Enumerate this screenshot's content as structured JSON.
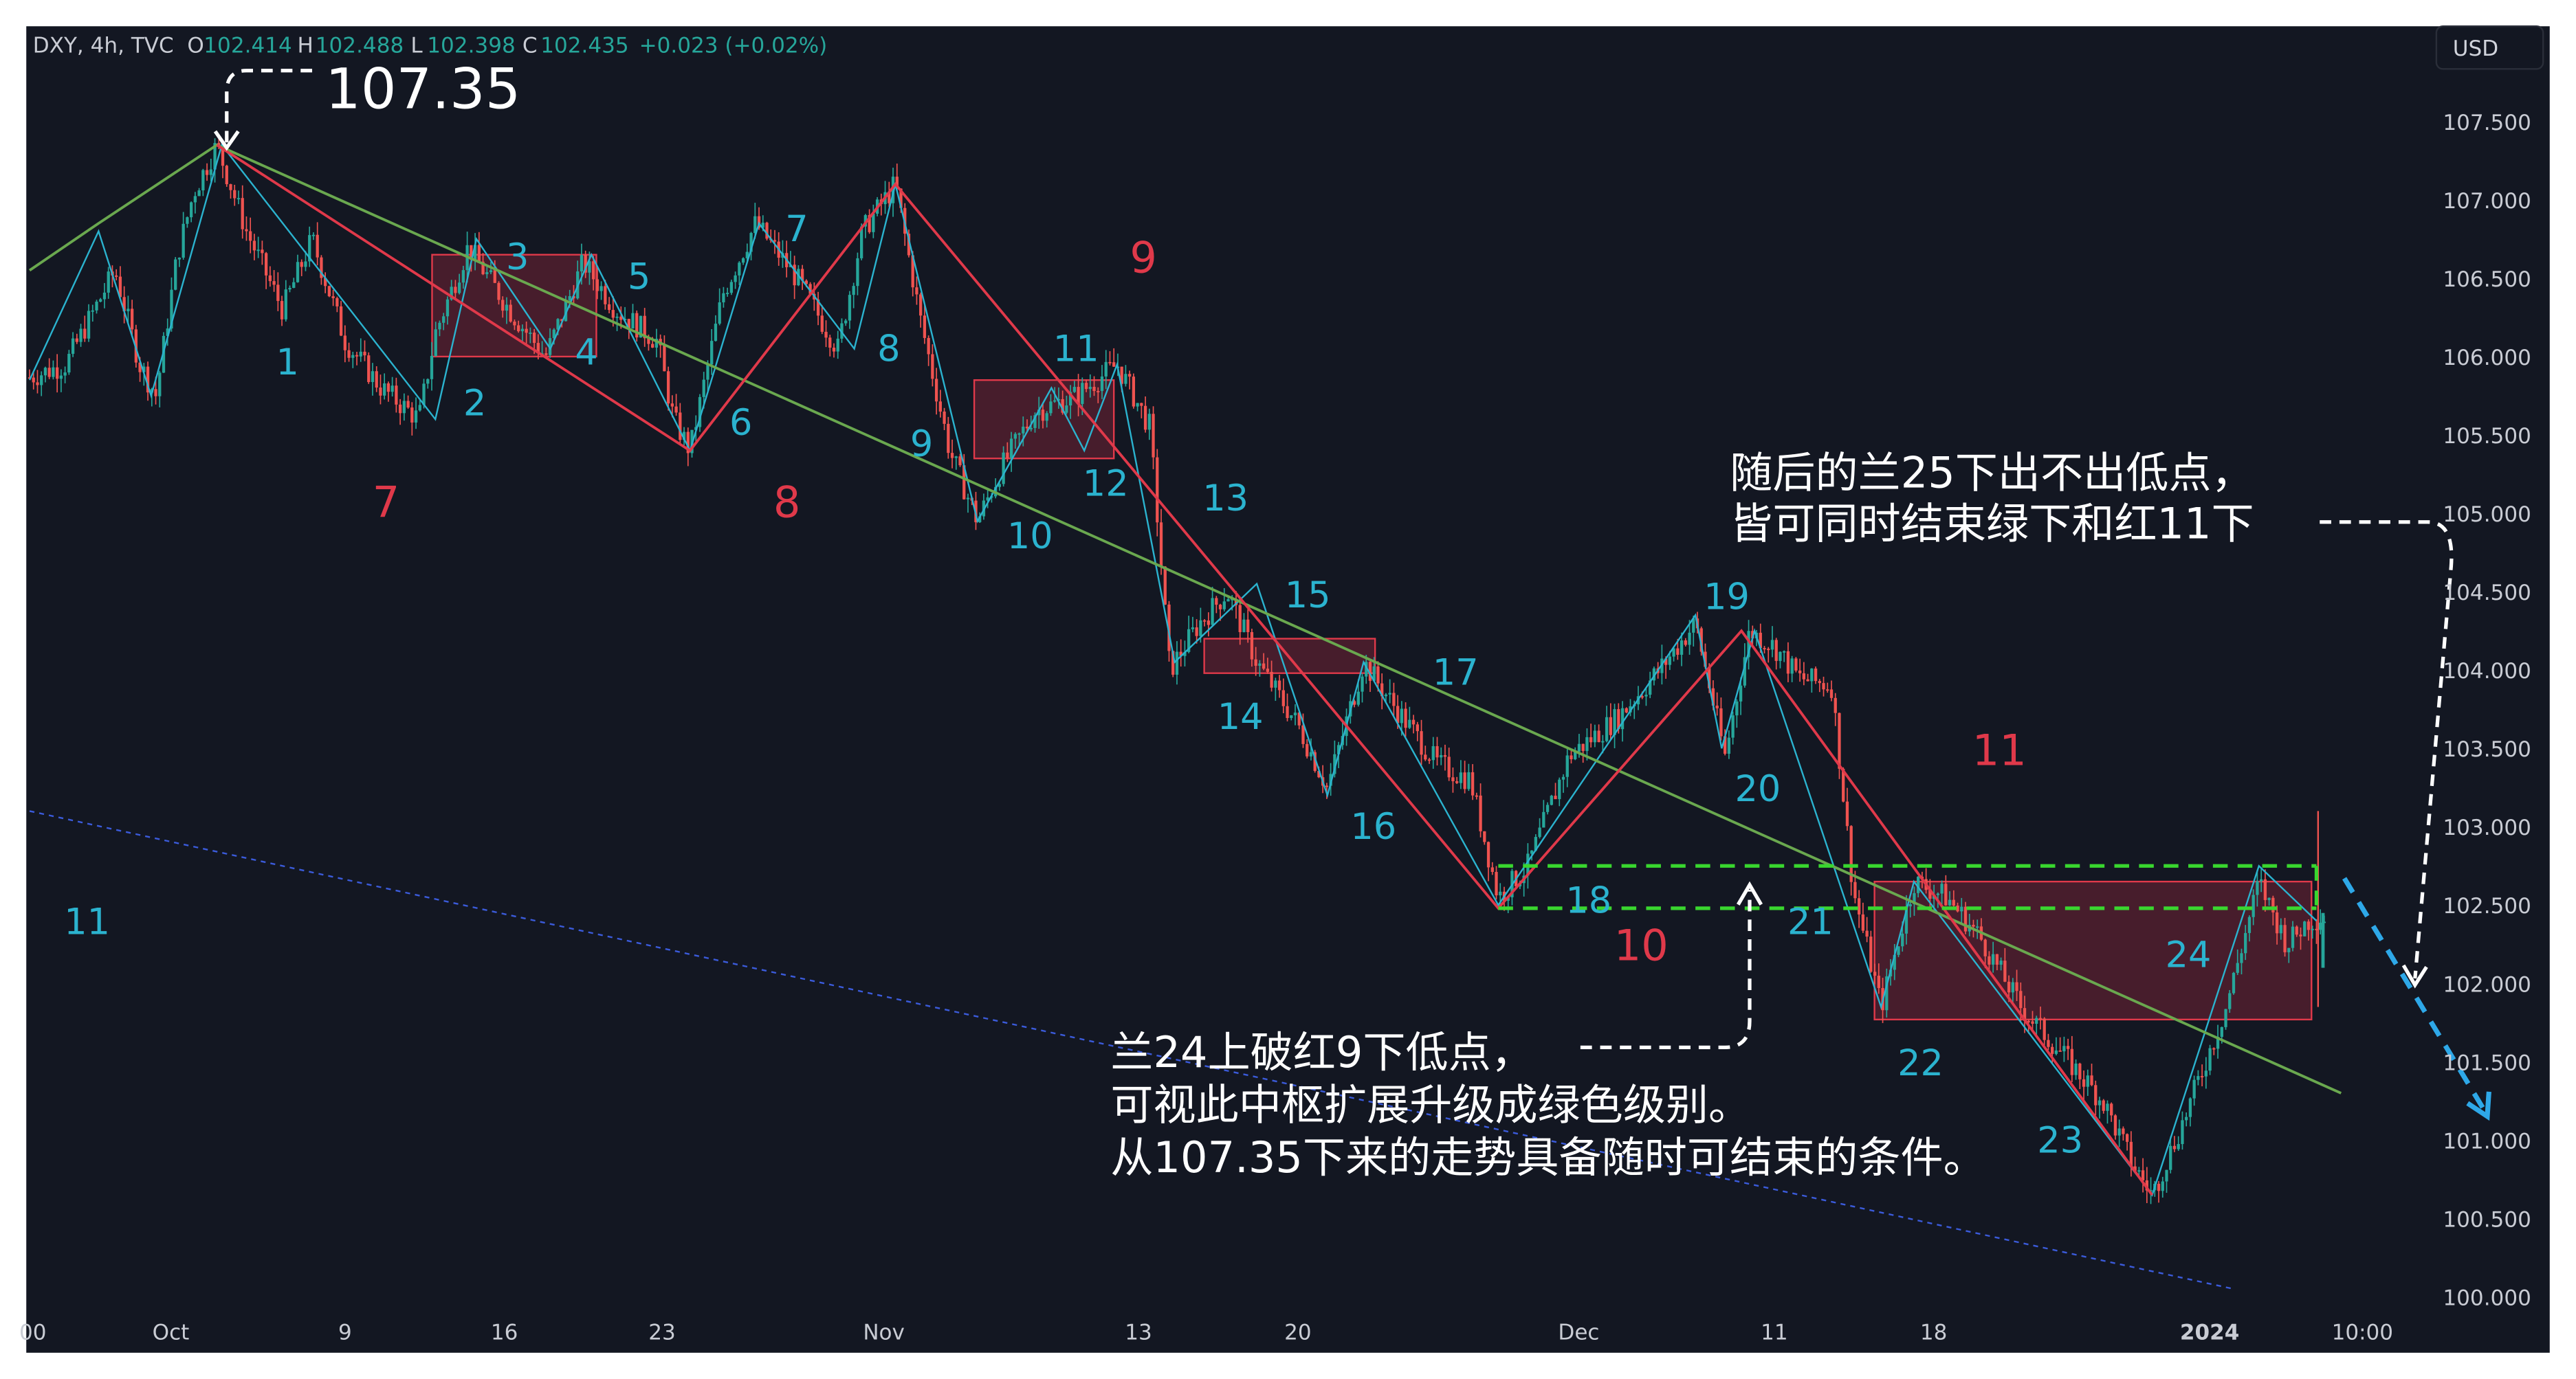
{
  "header": {
    "symbol": "DXY, 4h, TVC",
    "o_label": "O",
    "o_value": "102.414",
    "h_label": "H",
    "h_value": "102.488",
    "l_label": "L",
    "l_value": "102.398",
    "c_label": "C",
    "c_value": "102.435",
    "change": "+0.023 (+0.02%)"
  },
  "currency_button": "USD",
  "colors": {
    "background": "#131722",
    "up_candle": "#26a69a",
    "down_candle": "#ef5350",
    "red_line": "#e0394a",
    "green_line": "#6aa84f",
    "cyan_line": "#2bb3cf",
    "zone_fill": "#5a2030",
    "green_dashed": "#39d62f",
    "blue_dotted": "#3b5bdb",
    "blue_arrow": "#2ea8e8",
    "white": "#ffffff",
    "axis_text": "#c9ccd4"
  },
  "chart_data": {
    "type": "candlestick",
    "y_axis": {
      "ylim": [
        99.85,
        108.05
      ],
      "ticks": [
        "107.500",
        "107.000",
        "106.500",
        "106.000",
        "105.500",
        "105.000",
        "104.500",
        "104.000",
        "103.500",
        "103.000",
        "102.500",
        "102.000",
        "101.500",
        "101.000",
        "100.500",
        "100.000"
      ],
      "tick_values": [
        107.5,
        107.0,
        106.5,
        106.0,
        105.5,
        105.0,
        104.5,
        104.0,
        103.5,
        103.0,
        102.5,
        102.0,
        101.5,
        101.0,
        100.5,
        100.0
      ],
      "position": "right"
    },
    "x_axis": {
      "ticks": [
        "00",
        "Oct",
        "9",
        "16",
        "23",
        "Nov",
        "13",
        "20",
        "Dec",
        "11",
        "18",
        "2024",
        "10:00"
      ],
      "tick_bold": [
        false,
        false,
        false,
        false,
        false,
        false,
        false,
        false,
        false,
        false,
        false,
        true,
        false
      ]
    },
    "price_path": [
      [
        0,
        105.8
      ],
      [
        40,
        105.95
      ],
      [
        70,
        106.55
      ],
      [
        85,
        105.95
      ],
      [
        95,
        105.75
      ],
      [
        108,
        106.65
      ],
      [
        118,
        107.05
      ],
      [
        132,
        107.35
      ],
      [
        150,
        106.8
      ],
      [
        172,
        106.3
      ],
      [
        190,
        106.75
      ],
      [
        210,
        106.1
      ],
      [
        232,
        105.8
      ],
      [
        255,
        105.6
      ],
      [
        265,
        106.15
      ],
      [
        285,
        106.7
      ],
      [
        310,
        106.3
      ],
      [
        332,
        106.0
      ],
      [
        355,
        106.6
      ],
      [
        375,
        106.3
      ],
      [
        400,
        106.1
      ],
      [
        410,
        105.6
      ],
      [
        420,
        105.4
      ],
      [
        440,
        106.4
      ],
      [
        460,
        106.85
      ],
      [
        485,
        106.5
      ],
      [
        510,
        106.05
      ],
      [
        525,
        106.8
      ],
      [
        545,
        107.1
      ],
      [
        560,
        106.25
      ],
      [
        578,
        105.4
      ],
      [
        595,
        104.95
      ],
      [
        610,
        105.3
      ],
      [
        630,
        105.65
      ],
      [
        655,
        105.75
      ],
      [
        680,
        105.95
      ],
      [
        700,
        105.55
      ],
      [
        712,
        104.0
      ],
      [
        730,
        104.3
      ],
      [
        747,
        104.5
      ],
      [
        765,
        104.05
      ],
      [
        790,
        103.65
      ],
      [
        808,
        103.25
      ],
      [
        830,
        104.05
      ],
      [
        850,
        103.75
      ],
      [
        875,
        103.4
      ],
      [
        895,
        103.3
      ],
      [
        912,
        102.55
      ],
      [
        930,
        102.75
      ],
      [
        955,
        103.45
      ],
      [
        985,
        103.7
      ],
      [
        1010,
        104.0
      ],
      [
        1032,
        104.3
      ],
      [
        1050,
        103.45
      ],
      [
        1065,
        104.25
      ],
      [
        1080,
        104.15
      ],
      [
        1095,
        103.95
      ],
      [
        1115,
        103.9
      ],
      [
        1128,
        102.6
      ],
      [
        1145,
        101.85
      ],
      [
        1165,
        102.65
      ],
      [
        1185,
        102.55
      ],
      [
        1205,
        102.3
      ],
      [
        1230,
        101.85
      ],
      [
        1255,
        101.55
      ],
      [
        1280,
        101.25
      ],
      [
        1298,
        100.85
      ],
      [
        1310,
        100.65
      ],
      [
        1330,
        101.15
      ],
      [
        1355,
        101.85
      ],
      [
        1375,
        102.65
      ],
      [
        1392,
        102.25
      ],
      [
        1405,
        102.4
      ],
      [
        1415,
        102.43
      ]
    ],
    "wave_labels_cyan": [
      "1",
      "2",
      "3",
      "4",
      "5",
      "6",
      "7",
      "8",
      "9",
      "10",
      "11",
      "12",
      "13",
      "14",
      "15",
      "16",
      "17",
      "18",
      "19",
      "20",
      "21",
      "22",
      "23",
      "24",
      "11"
    ],
    "segment_labels_red": [
      "7",
      "8",
      "9",
      "10",
      "11"
    ],
    "annotation_top": "107.35",
    "annotation_right_line1": "随后的兰25下出不出低点，",
    "annotation_right_line2": "皆可同时结束绿下和红11下",
    "annotation_bottom_line1": "兰24上破红9下低点，",
    "annotation_bottom_line2": "可视此中枢扩展升级成绿色级别。",
    "annotation_bottom_line3": "从107.35下来的走势具备随时可结束的条件。",
    "zones": [
      {
        "x0": 263,
        "x1": 363,
        "y_top": 106.65,
        "y_bottom": 106.0
      },
      {
        "x0": 593,
        "x1": 678,
        "y_top": 105.85,
        "y_bottom": 105.35
      },
      {
        "x0": 733,
        "x1": 837,
        "y_top": 104.2,
        "y_bottom": 103.98
      },
      {
        "x0": 1141,
        "x1": 1407,
        "y_top": 102.65,
        "y_bottom": 101.77
      }
    ],
    "green_dashed": {
      "x0": 912,
      "x1": 1410,
      "y_top": 102.75,
      "y_bottom": 102.48
    },
    "red_segments": [
      [
        132,
        107.35
      ],
      [
        420,
        105.4
      ],
      [
        545,
        107.1
      ],
      [
        912,
        102.48
      ],
      [
        1060,
        104.25
      ],
      [
        1310,
        100.65
      ]
    ],
    "green_segments": [
      [
        18,
        106.55
      ],
      [
        60,
        106.85
      ],
      [
        132,
        107.35
      ],
      [
        1425,
        101.3
      ]
    ],
    "blue_dotted": [
      [
        18,
        103.1
      ],
      [
        1360,
        100.05
      ]
    ],
    "last_candle": {
      "open": 102.414,
      "high": 102.488,
      "low": 102.398,
      "close": 102.435
    }
  }
}
